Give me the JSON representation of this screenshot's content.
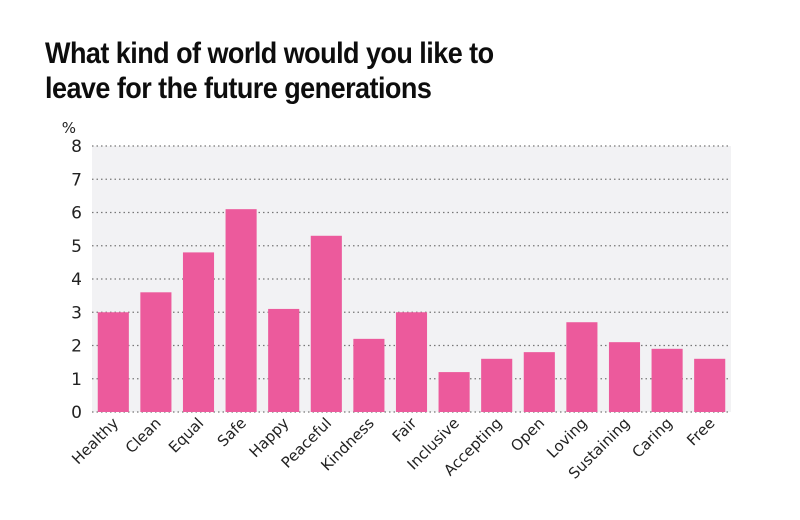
{
  "chart_data": {
    "type": "bar",
    "title": "What kind of world would you like to leave for the future generations",
    "title_lines": [
      "What kind of world would you like to",
      "leave for the future generations"
    ],
    "xlabel": "",
    "ylabel": "%",
    "ylim": [
      0,
      8
    ],
    "yticks": [
      0,
      1,
      2,
      3,
      4,
      5,
      6,
      7,
      8
    ],
    "grid": true,
    "legend": "none",
    "bar_color": "#EC5A9C",
    "plot_background": "#F2F2F4",
    "categories": [
      "Healthy",
      "Clean",
      "Equal",
      "Safe",
      "Happy",
      "Peaceful",
      "Kindness",
      "Fair",
      "Inclusive",
      "Accepting",
      "Open",
      "Loving",
      "Sustaining",
      "Caring",
      "Free"
    ],
    "values": [
      3.0,
      3.6,
      4.8,
      6.1,
      3.1,
      5.3,
      2.2,
      3.0,
      1.2,
      1.6,
      1.8,
      2.7,
      2.1,
      1.9,
      1.6
    ]
  }
}
